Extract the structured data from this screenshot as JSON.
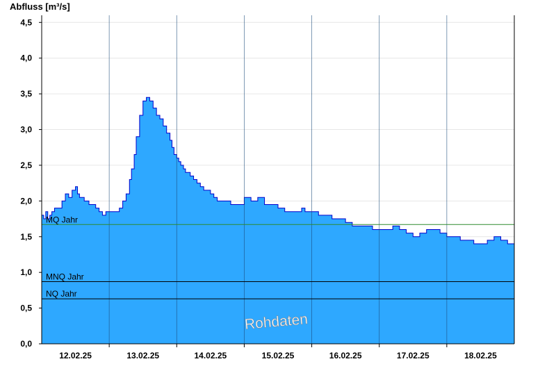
{
  "chart_data": {
    "type": "area",
    "ylabel": "Abfluss [m³/s]",
    "ylim": [
      0,
      4.6
    ],
    "y_ticks": [
      "0,0",
      "0,5",
      "1,0",
      "1,5",
      "2,0",
      "2,5",
      "3,0",
      "3,5",
      "4,0",
      "4,5"
    ],
    "y_tick_values": [
      0,
      0.5,
      1.0,
      1.5,
      2.0,
      2.5,
      3.0,
      3.5,
      4.0,
      4.5
    ],
    "x_range_days": [
      "11.02.25 12:00",
      "18.02.25 12:00"
    ],
    "x_ticks": [
      "12.02.25",
      "13.02.25",
      "14.02.25",
      "15.02.25",
      "16.02.25",
      "17.02.25",
      "18.02.25"
    ],
    "reference_lines": [
      {
        "name": "MQ Jahr",
        "value": 1.67,
        "color": "#2e8b2e"
      },
      {
        "name": "MNQ Jahr",
        "value": 0.87,
        "color": "#000000"
      },
      {
        "name": "NQ Jahr",
        "value": 0.63,
        "color": "#000000"
      }
    ],
    "watermark": "Rohdaten",
    "fill_color": "#2ea8ff",
    "line_color": "#0000cc",
    "series": [
      {
        "x": [
          0,
          0.03,
          0.06,
          0.09,
          0.12,
          0.15,
          0.19,
          0.25,
          0.3,
          0.35,
          0.4,
          0.45,
          0.5,
          0.53,
          0.56,
          0.6,
          0.63,
          0.67,
          0.7,
          0.75,
          0.8,
          0.85,
          0.9,
          0.95,
          1.0,
          1.05,
          1.1,
          1.15,
          1.2,
          1.25,
          1.3,
          1.33,
          1.37,
          1.4,
          1.45,
          1.5,
          1.55,
          1.6,
          1.65,
          1.7,
          1.75,
          1.8,
          1.85,
          1.9,
          1.93,
          1.96,
          2.0,
          2.03,
          2.06,
          2.1,
          2.13,
          2.16,
          2.2,
          2.25,
          2.3,
          2.35,
          2.4,
          2.45,
          2.5,
          2.55,
          2.6,
          2.7,
          2.8,
          2.9,
          3.0,
          3.1,
          3.2,
          3.3,
          3.4,
          3.5,
          3.6,
          3.7,
          3.8,
          3.85,
          3.9,
          4.0,
          4.1,
          4.2,
          4.3,
          4.4,
          4.5,
          4.6,
          4.7,
          4.8,
          4.9,
          5.0,
          5.1,
          5.2,
          5.3,
          5.4,
          5.5,
          5.6,
          5.7,
          5.8,
          5.9,
          6.0,
          6.1,
          6.2,
          6.3,
          6.4,
          6.5,
          6.6,
          6.7,
          6.8,
          6.9,
          7.0
        ],
        "y": [
          1.8,
          1.75,
          1.85,
          1.75,
          1.8,
          1.85,
          1.9,
          1.9,
          2.0,
          2.1,
          2.05,
          2.15,
          2.2,
          2.1,
          2.05,
          2.05,
          2.0,
          2.0,
          1.95,
          1.95,
          1.9,
          1.85,
          1.8,
          1.85,
          1.85,
          1.85,
          1.85,
          1.9,
          2.0,
          2.1,
          2.3,
          2.45,
          2.65,
          2.9,
          3.2,
          3.4,
          3.45,
          3.4,
          3.3,
          3.2,
          3.15,
          3.05,
          2.95,
          2.85,
          2.75,
          2.65,
          2.6,
          2.55,
          2.5,
          2.45,
          2.4,
          2.4,
          2.35,
          2.3,
          2.25,
          2.2,
          2.15,
          2.15,
          2.1,
          2.05,
          2.0,
          2.0,
          1.95,
          1.95,
          2.05,
          2.0,
          2.05,
          1.95,
          1.95,
          1.9,
          1.85,
          1.85,
          1.85,
          1.9,
          1.85,
          1.85,
          1.8,
          1.8,
          1.75,
          1.75,
          1.7,
          1.65,
          1.65,
          1.65,
          1.6,
          1.6,
          1.6,
          1.65,
          1.6,
          1.55,
          1.5,
          1.55,
          1.6,
          1.6,
          1.55,
          1.5,
          1.5,
          1.45,
          1.45,
          1.4,
          1.4,
          1.45,
          1.5,
          1.45,
          1.4,
          1.4
        ]
      }
    ]
  }
}
